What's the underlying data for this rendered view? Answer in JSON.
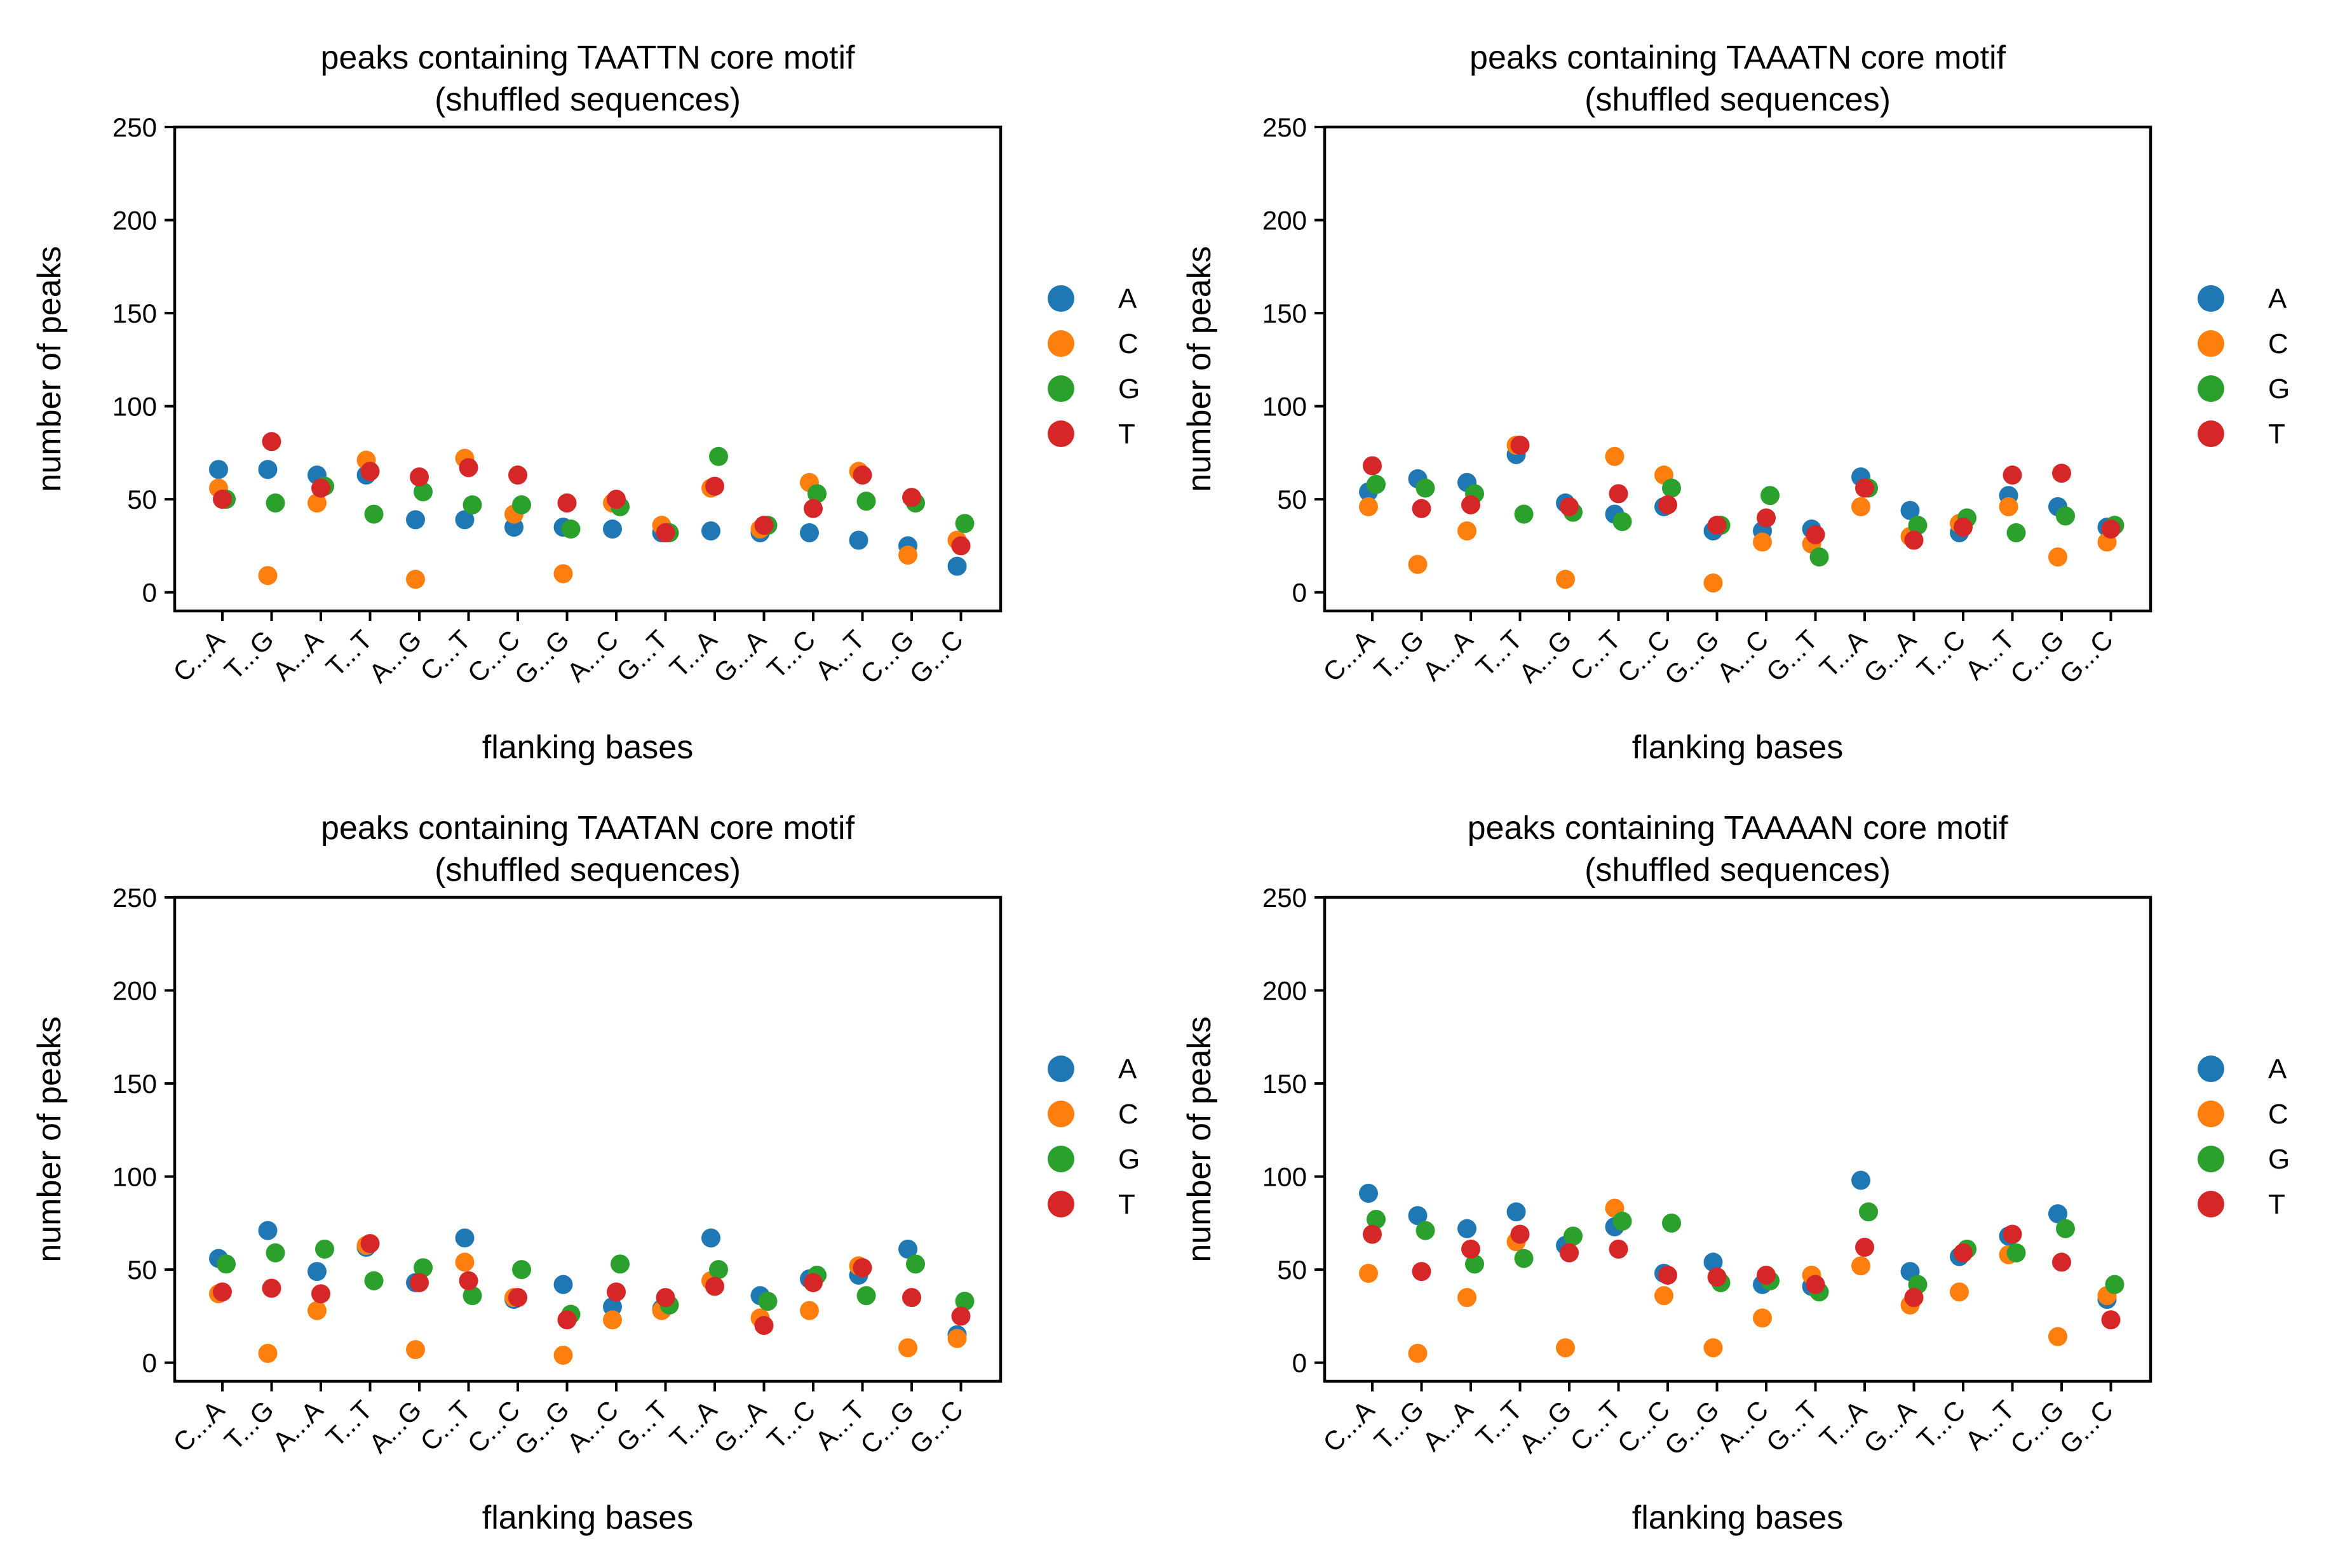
{
  "figure": {
    "legend_title": "",
    "colors": {
      "A": "#1f77b4",
      "C": "#ff7f0e",
      "G": "#2ca02c",
      "T": "#d62728"
    }
  },
  "chart_data": [
    {
      "type": "scatter",
      "title": "peaks containing TAATTN core motif\n(shuffled sequences)",
      "xlabel": "flanking bases",
      "ylabel": "number of peaks",
      "ylim": [
        -10,
        250
      ],
      "yticks": [
        0,
        50,
        100,
        150,
        200,
        250
      ],
      "categories": [
        "C...A",
        "T...G",
        "A...A",
        "T...T",
        "A...G",
        "C...T",
        "C...C",
        "G...G",
        "A...C",
        "G...T",
        "T...A",
        "G...A",
        "T...C",
        "A...T",
        "C...G",
        "G...C"
      ],
      "legend": "right",
      "grid": false,
      "series": [
        {
          "name": "A",
          "values": [
            66,
            66,
            63,
            63,
            39,
            39,
            35,
            35,
            34,
            32,
            33,
            32,
            32,
            28,
            25,
            14
          ]
        },
        {
          "name": "C",
          "values": [
            56,
            9,
            48,
            71,
            7,
            72,
            42,
            10,
            48,
            36,
            56,
            34,
            59,
            65,
            20,
            28
          ]
        },
        {
          "name": "G",
          "values": [
            50,
            48,
            57,
            42,
            54,
            47,
            47,
            34,
            46,
            32,
            73,
            36,
            53,
            49,
            48,
            37
          ]
        },
        {
          "name": "T",
          "values": [
            50,
            81,
            56,
            65,
            62,
            67,
            63,
            48,
            50,
            32,
            57,
            36,
            45,
            63,
            51,
            25
          ]
        }
      ]
    },
    {
      "type": "scatter",
      "title": "peaks containing TAAATN core motif\n(shuffled sequences)",
      "xlabel": "flanking bases",
      "ylabel": "number of peaks",
      "ylim": [
        -10,
        250
      ],
      "yticks": [
        0,
        50,
        100,
        150,
        200,
        250
      ],
      "categories": [
        "C...A",
        "T...G",
        "A...A",
        "T...T",
        "A...G",
        "C...T",
        "C...C",
        "G...G",
        "A...C",
        "G...T",
        "T...A",
        "G...A",
        "T...C",
        "A...T",
        "C...G",
        "G...C"
      ],
      "legend": "right",
      "grid": false,
      "series": [
        {
          "name": "A",
          "values": [
            54,
            61,
            59,
            74,
            48,
            42,
            46,
            33,
            33,
            34,
            62,
            44,
            32,
            52,
            46,
            35
          ]
        },
        {
          "name": "C",
          "values": [
            46,
            15,
            33,
            79,
            7,
            73,
            63,
            5,
            27,
            26,
            46,
            30,
            37,
            46,
            19,
            27
          ]
        },
        {
          "name": "G",
          "values": [
            58,
            56,
            53,
            42,
            43,
            38,
            56,
            36,
            52,
            19,
            56,
            36,
            40,
            32,
            41,
            36
          ]
        },
        {
          "name": "T",
          "values": [
            68,
            45,
            47,
            79,
            46,
            53,
            47,
            36,
            40,
            31,
            56,
            28,
            35,
            63,
            64,
            34
          ]
        }
      ]
    },
    {
      "type": "scatter",
      "title": "peaks containing TAATAN core motif\n(shuffled sequences)",
      "xlabel": "flanking bases",
      "ylabel": "number of peaks",
      "ylim": [
        -10,
        250
      ],
      "yticks": [
        0,
        50,
        100,
        150,
        200,
        250
      ],
      "categories": [
        "C...A",
        "T...G",
        "A...A",
        "T...T",
        "A...G",
        "C...T",
        "C...C",
        "G...G",
        "A...C",
        "G...T",
        "T...A",
        "G...A",
        "T...C",
        "A...T",
        "C...G",
        "G...C"
      ],
      "legend": "right",
      "grid": false,
      "series": [
        {
          "name": "A",
          "values": [
            56,
            71,
            49,
            62,
            43,
            67,
            34,
            42,
            30,
            29,
            67,
            36,
            45,
            47,
            61,
            15
          ]
        },
        {
          "name": "C",
          "values": [
            37,
            5,
            28,
            63,
            7,
            54,
            35,
            4,
            23,
            28,
            44,
            24,
            28,
            52,
            8,
            13
          ]
        },
        {
          "name": "G",
          "values": [
            53,
            59,
            61,
            44,
            51,
            36,
            50,
            26,
            53,
            31,
            50,
            33,
            47,
            36,
            53,
            33
          ]
        },
        {
          "name": "T",
          "values": [
            38,
            40,
            37,
            64,
            43,
            44,
            35,
            23,
            38,
            35,
            41,
            20,
            43,
            51,
            35,
            25
          ]
        }
      ]
    },
    {
      "type": "scatter",
      "title": "peaks containing TAAAAN core motif\n(shuffled sequences)",
      "xlabel": "flanking bases",
      "ylabel": "number of peaks",
      "ylim": [
        -10,
        250
      ],
      "yticks": [
        0,
        50,
        100,
        150,
        200,
        250
      ],
      "categories": [
        "C...A",
        "T...G",
        "A...A",
        "T...T",
        "A...G",
        "C...T",
        "C...C",
        "G...G",
        "A...C",
        "G...T",
        "T...A",
        "G...A",
        "T...C",
        "A...T",
        "C...G",
        "G...C"
      ],
      "legend": "right",
      "grid": false,
      "series": [
        {
          "name": "A",
          "values": [
            91,
            79,
            72,
            81,
            63,
            73,
            48,
            54,
            42,
            41,
            98,
            49,
            57,
            68,
            80,
            34
          ]
        },
        {
          "name": "C",
          "values": [
            48,
            5,
            35,
            65,
            8,
            83,
            36,
            8,
            24,
            47,
            52,
            31,
            38,
            58,
            14,
            36
          ]
        },
        {
          "name": "G",
          "values": [
            77,
            71,
            53,
            56,
            68,
            76,
            75,
            43,
            44,
            38,
            81,
            42,
            61,
            59,
            72,
            42
          ]
        },
        {
          "name": "T",
          "values": [
            69,
            49,
            61,
            69,
            59,
            61,
            47,
            46,
            47,
            42,
            62,
            35,
            59,
            69,
            54,
            23
          ]
        }
      ]
    }
  ]
}
